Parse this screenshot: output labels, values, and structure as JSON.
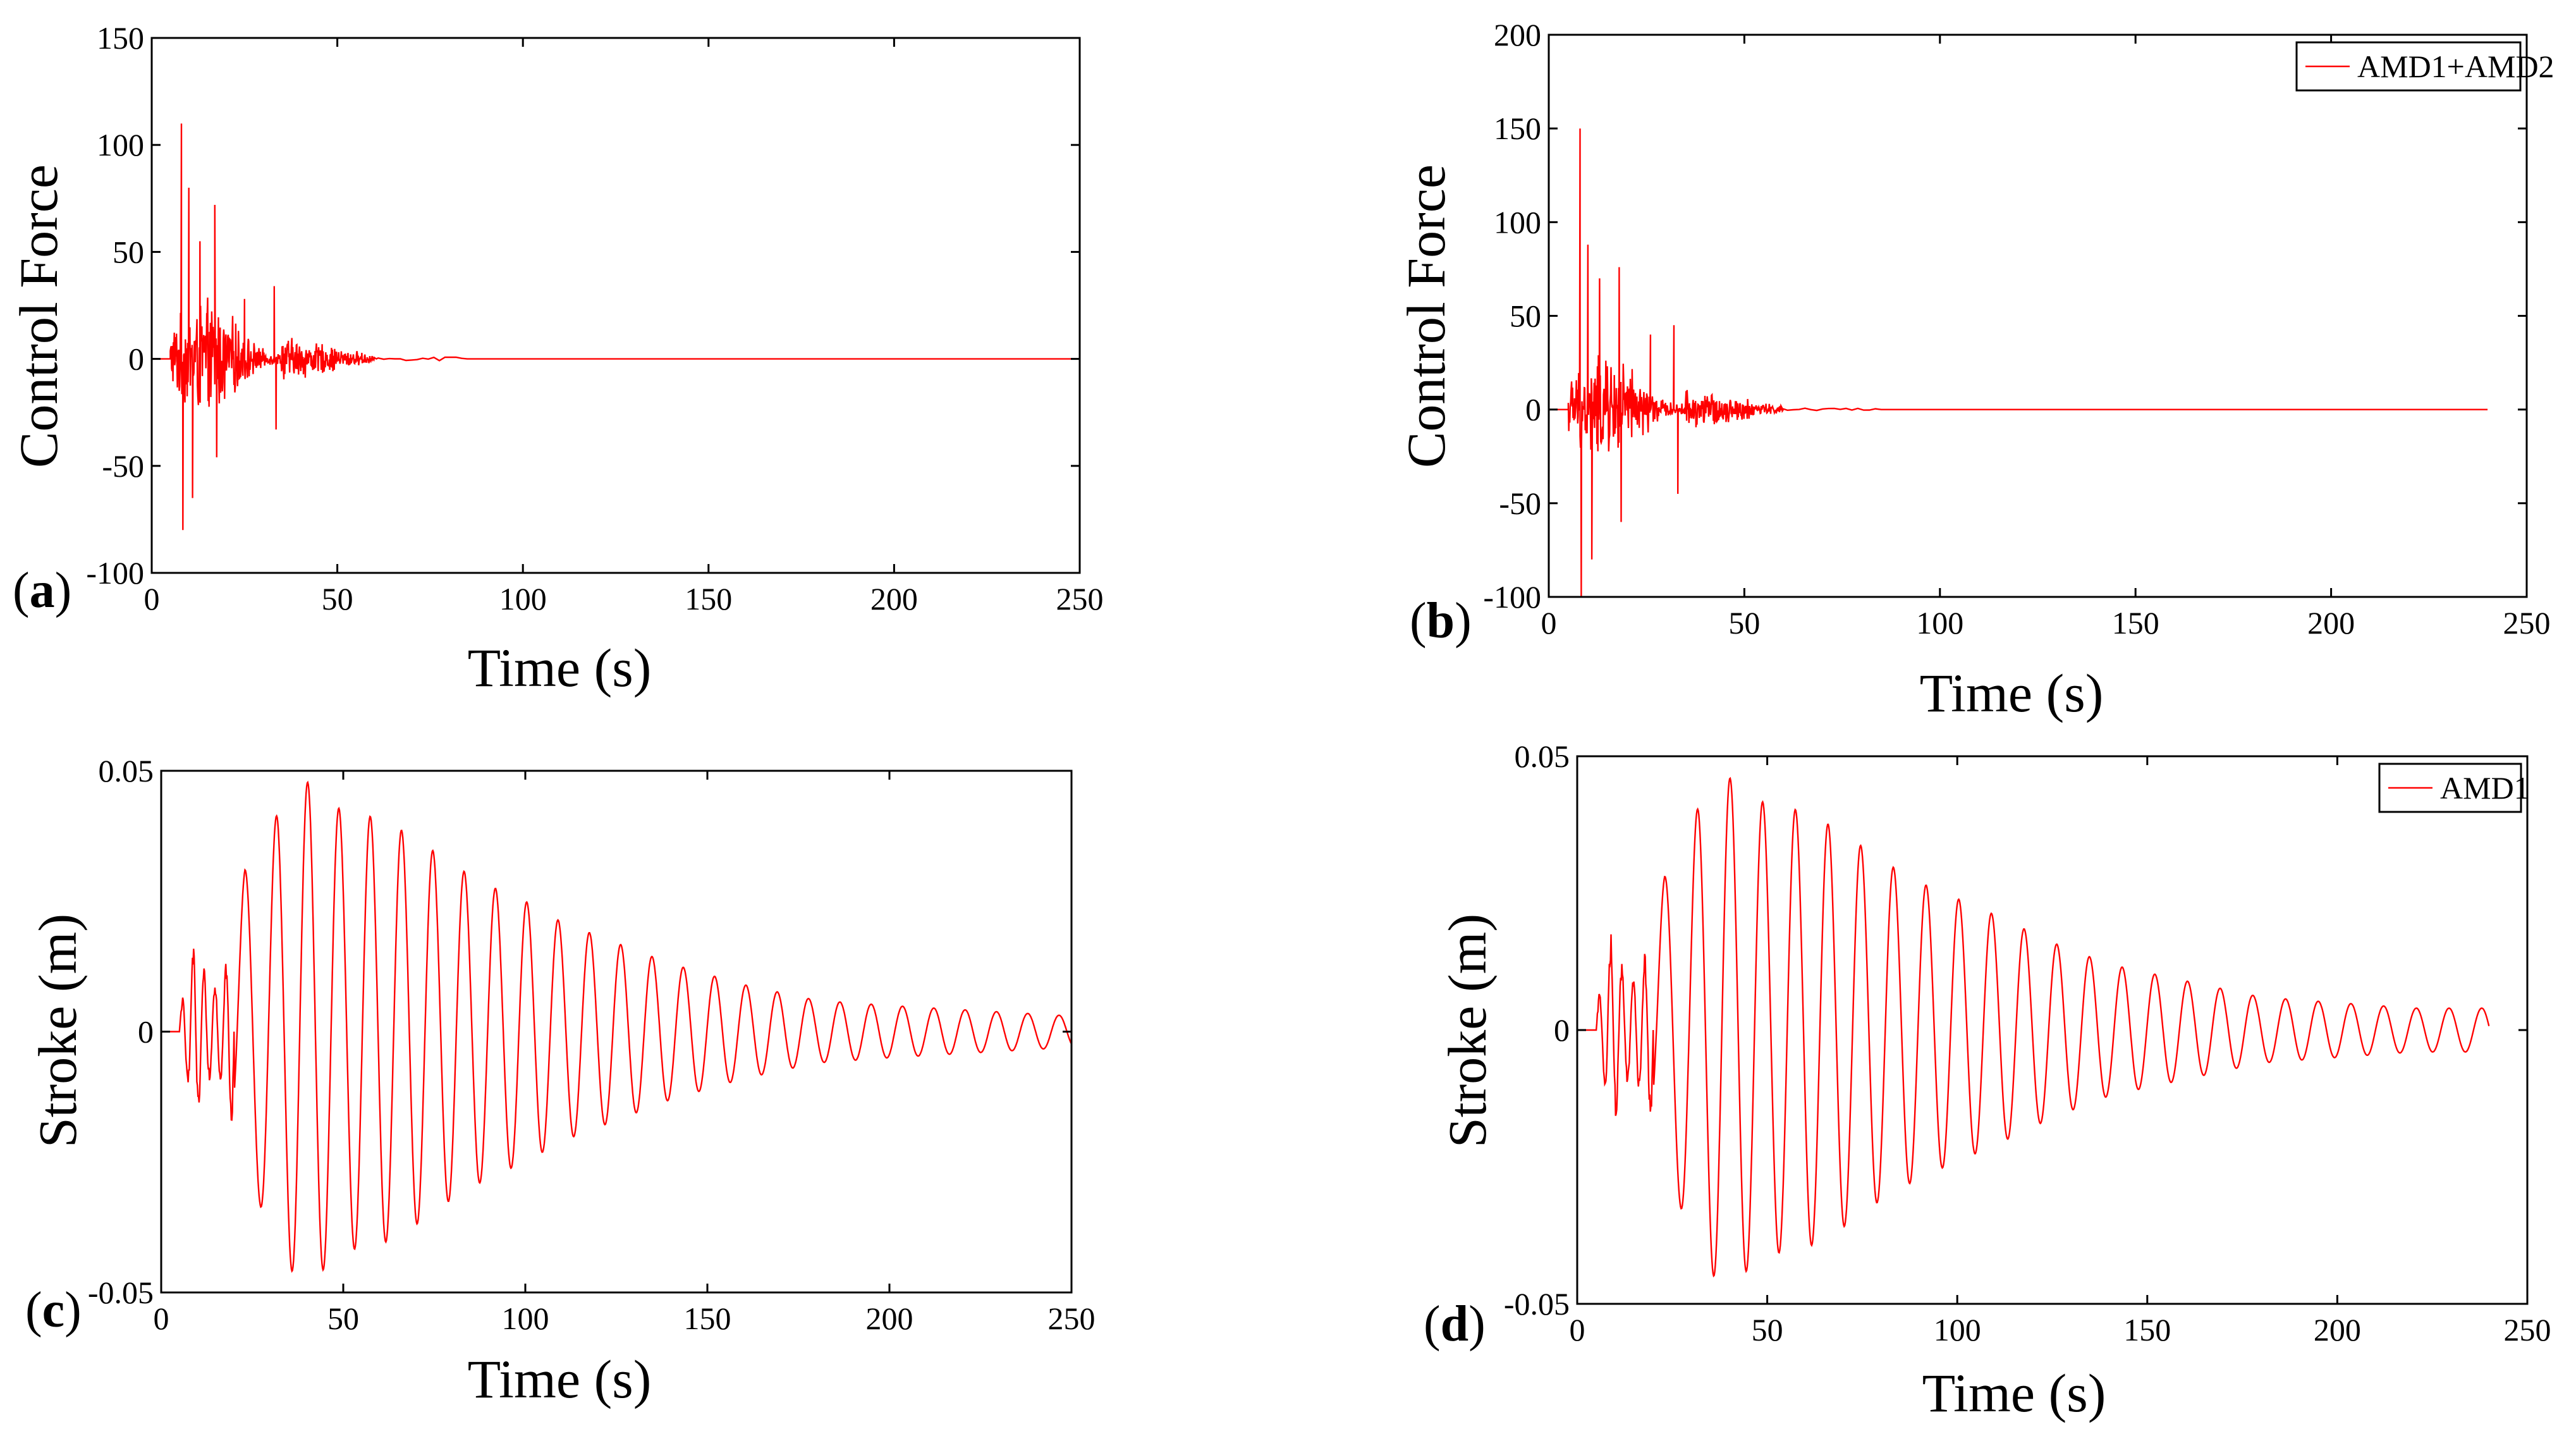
{
  "figure": {
    "panels": [
      "(a)",
      "(b)",
      "(c)",
      "(d)"
    ]
  },
  "colors": {
    "series": "#ff0000",
    "axis": "#000000",
    "background": "#ffffff"
  },
  "chart_data": [
    {
      "id": "a",
      "type": "line",
      "panel_label": "(a)",
      "title": "",
      "xlabel": "Time (s)",
      "ylabel": "Control Force",
      "xlim": [
        0,
        250
      ],
      "ylim": [
        -100,
        150
      ],
      "xticks": [
        0,
        50,
        100,
        150,
        200,
        250
      ],
      "yticks": [
        -100,
        -50,
        0,
        50,
        100,
        150
      ],
      "xtick_labels": [
        "0",
        "50",
        "100",
        "150",
        "200",
        "250"
      ],
      "ytick_labels": [
        "-100",
        "-50",
        "0",
        "50",
        "100",
        "150"
      ],
      "legend": [],
      "signal": {
        "kind": "impulse",
        "t_start": 5,
        "t_strong_end": 35,
        "t_decay_end": 60,
        "t_end": 250,
        "base_amp": 30,
        "peaks": [
          [
            8,
            110
          ],
          [
            8.4,
            -80
          ],
          [
            10,
            80
          ],
          [
            11,
            -65
          ],
          [
            13,
            55
          ],
          [
            17,
            72
          ],
          [
            17.5,
            -46
          ],
          [
            25,
            28
          ],
          [
            33,
            34
          ],
          [
            33.5,
            -33
          ]
        ]
      }
    },
    {
      "id": "b",
      "type": "line",
      "panel_label": "(b)",
      "title": "",
      "xlabel": "Time (s)",
      "ylabel": "Control Force",
      "xlim": [
        0,
        250
      ],
      "ylim": [
        -100,
        200
      ],
      "xticks": [
        0,
        50,
        100,
        150,
        200,
        250
      ],
      "yticks": [
        -100,
        -50,
        0,
        50,
        100,
        150,
        200
      ],
      "xtick_labels": [
        "0",
        "50",
        "100",
        "150",
        "200",
        "250"
      ],
      "ytick_labels": [
        "-100",
        "-50",
        "0",
        "50",
        "100",
        "150",
        "200"
      ],
      "legend": [
        "AMD1+AMD2"
      ],
      "signal": {
        "kind": "impulse",
        "t_start": 5,
        "t_strong_end": 35,
        "t_decay_end": 60,
        "t_end": 240,
        "base_amp": 32,
        "peaks": [
          [
            8,
            150
          ],
          [
            8.3,
            -100
          ],
          [
            10,
            88
          ],
          [
            11,
            -80
          ],
          [
            13,
            70
          ],
          [
            18,
            76
          ],
          [
            18.5,
            -60
          ],
          [
            26,
            40
          ],
          [
            32,
            45
          ],
          [
            33,
            -45
          ]
        ]
      }
    },
    {
      "id": "c",
      "type": "line",
      "panel_label": "(c)",
      "title": "",
      "xlabel": "Time (s)",
      "ylabel": "Stroke (m)",
      "xlim": [
        0,
        250
      ],
      "ylim": [
        -0.05,
        0.05
      ],
      "xticks": [
        0,
        50,
        100,
        150,
        200,
        250
      ],
      "yticks": [
        -0.05,
        0,
        0.05
      ],
      "xtick_labels": [
        "0",
        "50",
        "100",
        "150",
        "200",
        "250"
      ],
      "ytick_labels": [
        "-0.05",
        "0",
        "0.05"
      ],
      "legend": [],
      "signal": {
        "kind": "oscillation",
        "t_start": 5,
        "t_end": 250,
        "period": 8.6,
        "phase_ref": 23,
        "envelope": [
          [
            5,
            0.004
          ],
          [
            9,
            0.018
          ],
          [
            13,
            0.01
          ],
          [
            17,
            0.012
          ],
          [
            23,
            0.031
          ],
          [
            27,
            0.033
          ],
          [
            32,
            0.042
          ],
          [
            37,
            0.047
          ],
          [
            41,
            0.048
          ],
          [
            50,
            0.042
          ],
          [
            60,
            0.041
          ],
          [
            70,
            0.037
          ],
          [
            80,
            0.032
          ],
          [
            90,
            0.028
          ],
          [
            100,
            0.025
          ],
          [
            110,
            0.021
          ],
          [
            125,
            0.017
          ],
          [
            140,
            0.013
          ],
          [
            160,
            0.009
          ],
          [
            180,
            0.006
          ],
          [
            200,
            0.005
          ],
          [
            225,
            0.004
          ],
          [
            250,
            0.003
          ]
        ]
      }
    },
    {
      "id": "d",
      "type": "line",
      "panel_label": "(d)",
      "title": "",
      "xlabel": "Time (s)",
      "ylabel": "Stroke (m)",
      "xlim": [
        0,
        250
      ],
      "ylim": [
        -0.05,
        0.05
      ],
      "xticks": [
        0,
        50,
        100,
        150,
        200,
        250
      ],
      "yticks": [
        -0.05,
        0,
        0.05
      ],
      "xtick_labels": [
        "0",
        "50",
        "100",
        "150",
        "200",
        "250"
      ],
      "ytick_labels": [
        "-0.05",
        "0",
        "0.05"
      ],
      "legend": [
        "AMD1"
      ],
      "signal": {
        "kind": "oscillation",
        "t_start": 5,
        "t_end": 240,
        "period": 8.6,
        "phase_ref": 23,
        "envelope": [
          [
            5,
            0.004
          ],
          [
            9,
            0.019
          ],
          [
            13,
            0.01
          ],
          [
            17,
            0.012
          ],
          [
            23,
            0.028
          ],
          [
            27,
            0.032
          ],
          [
            32,
            0.041
          ],
          [
            37,
            0.046
          ],
          [
            41,
            0.046
          ],
          [
            50,
            0.041
          ],
          [
            60,
            0.04
          ],
          [
            70,
            0.036
          ],
          [
            80,
            0.031
          ],
          [
            90,
            0.027
          ],
          [
            100,
            0.024
          ],
          [
            110,
            0.021
          ],
          [
            125,
            0.016
          ],
          [
            140,
            0.012
          ],
          [
            160,
            0.009
          ],
          [
            180,
            0.006
          ],
          [
            200,
            0.005
          ],
          [
            220,
            0.004
          ],
          [
            240,
            0.004
          ]
        ]
      }
    }
  ]
}
